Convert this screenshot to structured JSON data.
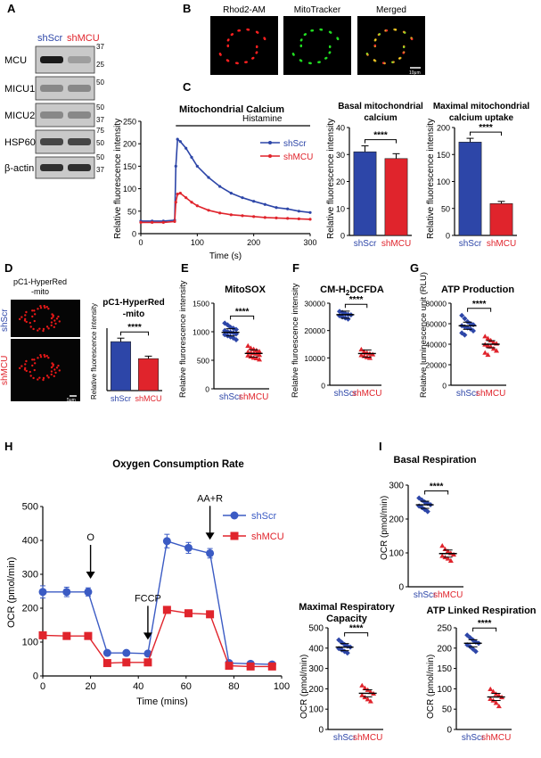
{
  "panels": {
    "A": {
      "letter": "A",
      "col_labels": [
        "shScr",
        "shMCU"
      ],
      "rows": [
        "MCU",
        "MICU1",
        "MICU2",
        "HSP60",
        "β-actin"
      ],
      "markers": [
        "37",
        "25",
        "50",
        "50",
        "37",
        "75",
        "50",
        "50",
        "37"
      ],
      "col_colors": [
        "#2d46a8",
        "#e0242c"
      ]
    },
    "B": {
      "letter": "B",
      "titles": [
        "Rhod2-AM",
        "MitoTracker",
        "Merged"
      ],
      "scale": "10μm"
    },
    "C": {
      "letter": "C",
      "trace": {
        "type": "line",
        "title": "Mitochondrial Calcium",
        "annotation": "Histamine",
        "xlabel": "Time (s)",
        "ylabel": "Relative fluorescence intensity",
        "xlim": [
          0,
          300
        ],
        "ylim": [
          0,
          250
        ],
        "xticks": [
          0,
          100,
          200,
          300
        ],
        "yticks": [
          0,
          50,
          100,
          150,
          200,
          250
        ],
        "series": [
          {
            "name": "shScr",
            "color": "#2d46a8",
            "x": [
              0,
              20,
              40,
              60,
              62,
              65,
              70,
              80,
              90,
              100,
              120,
              140,
              160,
              180,
              200,
              220,
              240,
              260,
              280,
              300
            ],
            "y": [
              28,
              28,
              28,
              30,
              150,
              210,
              205,
              190,
              170,
              150,
              125,
              105,
              90,
              80,
              72,
              65,
              58,
              55,
              50,
              47
            ]
          },
          {
            "name": "shMCU",
            "color": "#e0242c",
            "x": [
              0,
              20,
              40,
              60,
              62,
              65,
              70,
              80,
              90,
              100,
              120,
              140,
              160,
              180,
              200,
              220,
              240,
              260,
              280,
              300
            ],
            "y": [
              25,
              25,
              25,
              27,
              70,
              88,
              90,
              80,
              70,
              62,
              52,
              46,
              42,
              40,
              38,
              36,
              35,
              34,
              33,
              32
            ]
          }
        ]
      },
      "basal": {
        "type": "bar",
        "title": [
          "Basal mitochondrial",
          "calcium"
        ],
        "ylabel": "Relative fluorescence intensity",
        "ylim": [
          0,
          40
        ],
        "yticks": [
          0,
          10,
          20,
          30,
          40
        ],
        "categories": [
          "shScr",
          "shMCU"
        ],
        "values": [
          31,
          28.5
        ],
        "errors": [
          2.2,
          1.8
        ],
        "colors": [
          "#2d46a8",
          "#e0242c"
        ],
        "sig": "****"
      },
      "maximal": {
        "type": "bar",
        "title": [
          "Maximal mitochondrial",
          "calcium uptake"
        ],
        "ylabel": "Relative fluorescence intensity",
        "ylim": [
          0,
          200
        ],
        "yticks": [
          0,
          50,
          100,
          150,
          200
        ],
        "categories": [
          "shScr",
          "shMCU"
        ],
        "values": [
          173,
          59
        ],
        "errors": [
          7,
          4
        ],
        "colors": [
          "#2d46a8",
          "#e0242c"
        ],
        "sig": "****"
      }
    },
    "D": {
      "letter": "D",
      "image_title": [
        "pC1-HyperRed",
        "-mito"
      ],
      "row_labels": [
        "shScr",
        "shMCU"
      ],
      "scale": "5μm",
      "bar": {
        "type": "bar",
        "title": [
          "pC1-HyperRed",
          "-mito"
        ],
        "ylabel": "Relative fluorescence intensity",
        "ylim": [
          0,
          250
        ],
        "categories": [
          "shScr",
          "shMCU"
        ],
        "values": [
          196,
          128
        ],
        "errors": [
          14,
          10
        ],
        "colors": [
          "#2d46a8",
          "#e0242c"
        ],
        "sig": "****"
      }
    },
    "E": {
      "letter": "E",
      "chart": {
        "type": "scatter",
        "title": "MitoSOX",
        "ylabel": "Relative flurorescence intensity",
        "ylim": [
          0,
          1500
        ],
        "yticks": [
          0,
          500,
          1000,
          1500
        ],
        "categories": [
          "shScr",
          "shMCU"
        ],
        "colors": [
          "#2d46a8",
          "#e0242c"
        ],
        "means": [
          990,
          620
        ],
        "points": [
          [
            1150,
            1120,
            1080,
            1060,
            1040,
            1020,
            1000,
            990,
            980,
            960,
            950,
            930,
            910,
            890,
            860
          ],
          [
            760,
            720,
            700,
            680,
            660,
            650,
            640,
            630,
            620,
            600,
            590,
            570,
            550,
            540,
            520
          ]
        ],
        "sig": "****"
      }
    },
    "F": {
      "letter": "F",
      "chart": {
        "type": "scatter",
        "title": "CM-H2DCFDA",
        "ylabel": "Relative fluroescence intensity",
        "ylim": [
          0,
          30000
        ],
        "yticks": [
          0,
          10000,
          20000,
          30000
        ],
        "categories": [
          "shScr",
          "shMCU"
        ],
        "colors": [
          "#2d46a8",
          "#e0242c"
        ],
        "means": [
          25800,
          11600
        ],
        "points": [
          [
            27000,
            26600,
            26200,
            25900,
            25700,
            25400,
            25000,
            24600,
            24200
          ],
          [
            13200,
            12400,
            12000,
            11700,
            11400,
            11100,
            10800,
            10400,
            10100
          ]
        ],
        "sig": "****"
      }
    },
    "G": {
      "letter": "G",
      "chart": {
        "type": "scatter",
        "title": "ATP Production",
        "ylabel": "Relative luminescence unit (RLU)",
        "ylim": [
          0,
          80000
        ],
        "yticks": [
          0,
          20000,
          40000,
          60000,
          80000
        ],
        "categories": [
          "shScr",
          "shMCU"
        ],
        "colors": [
          "#2d46a8",
          "#e0242c"
        ],
        "means": [
          58000,
          40000
        ],
        "points": [
          [
            68000,
            65000,
            62000,
            60000,
            59000,
            58000,
            57000,
            56000,
            55000,
            53000,
            51000,
            49000
          ],
          [
            48000,
            46000,
            44000,
            42000,
            41000,
            40000,
            39000,
            38000,
            36000,
            34000,
            32000,
            30000
          ]
        ],
        "sig": "****"
      }
    },
    "H": {
      "letter": "H",
      "chart": {
        "type": "line",
        "title": "Oxygen Consumption Rate",
        "xlabel": "Time (mins)",
        "ylabel": "OCR (pmol/min)",
        "xlim": [
          0,
          100
        ],
        "ylim": [
          0,
          500
        ],
        "xticks": [
          0,
          20,
          40,
          60,
          80,
          100
        ],
        "yticks": [
          0,
          100,
          200,
          300,
          400,
          500
        ],
        "annotations": [
          {
            "label": "O",
            "x": 20,
            "y": 250
          },
          {
            "label": "FCCP",
            "x": 44,
            "y": 70
          },
          {
            "label": "AA+R",
            "x": 70,
            "y": 365
          }
        ],
        "series": [
          {
            "name": "shScr",
            "color": "#3b5bc4",
            "marker": "circle",
            "x": [
              0,
              10,
              19,
              27,
              35,
              44,
              52,
              61,
              70,
              78,
              87,
              96
            ],
            "y": [
              248,
              248,
              248,
              68,
              68,
              66,
              398,
              378,
              362,
              38,
              36,
              34
            ],
            "err": [
              18,
              14,
              12,
              5,
              5,
              5,
              20,
              16,
              14,
              4,
              4,
              4
            ]
          },
          {
            "name": "shMCU",
            "color": "#e0242c",
            "marker": "square",
            "x": [
              0,
              10,
              19,
              27,
              35,
              44,
              52,
              61,
              70,
              78,
              87,
              96
            ],
            "y": [
              120,
              118,
              118,
              38,
              40,
              40,
              195,
              185,
              182,
              30,
              28,
              28
            ],
            "err": [
              6,
              6,
              6,
              3,
              3,
              3,
              10,
              9,
              9,
              3,
              3,
              3
            ]
          }
        ]
      }
    },
    "I": {
      "letter": "I",
      "basal": {
        "type": "scatter",
        "title": "Basal Respiration",
        "ylabel": "OCR (pmol/min)",
        "ylim": [
          0,
          300
        ],
        "yticks": [
          0,
          100,
          200,
          300
        ],
        "categories": [
          "shScr",
          "shMCU"
        ],
        "colors": [
          "#2d46a8",
          "#e0242c"
        ],
        "means": [
          242,
          98
        ],
        "points": [
          [
            262,
            256,
            250,
            246,
            242,
            238,
            234,
            228,
            222
          ],
          [
            122,
            112,
            106,
            100,
            96,
            92,
            88,
            84,
            78
          ]
        ],
        "sig": "****"
      },
      "maximal": {
        "type": "scatter",
        "title": [
          "Maximal Respiratory",
          "Capacity"
        ],
        "ylabel": "OCR (pmol/min)",
        "ylim": [
          0,
          500
        ],
        "yticks": [
          0,
          100,
          200,
          300,
          400,
          500
        ],
        "categories": [
          "shScr",
          "shMCU"
        ],
        "colors": [
          "#2d46a8",
          "#e0242c"
        ],
        "means": [
          405,
          178
        ],
        "points": [
          [
            440,
            428,
            418,
            410,
            405,
            398,
            392,
            384,
            376
          ],
          [
            218,
            205,
            196,
            186,
            178,
            170,
            160,
            150,
            140
          ]
        ],
        "sig": "****"
      },
      "atp": {
        "type": "scatter",
        "title": "ATP Linked Respiration",
        "ylabel": "OCR (pmol/min)",
        "ylim": [
          0,
          250
        ],
        "yticks": [
          0,
          50,
          100,
          150,
          200,
          250
        ],
        "categories": [
          "shScr",
          "shMCU"
        ],
        "colors": [
          "#2d46a8",
          "#e0242c"
        ],
        "means": [
          212,
          80
        ],
        "points": [
          [
            232,
            226,
            220,
            215,
            212,
            208,
            204,
            198,
            192
          ],
          [
            100,
            94,
            88,
            84,
            80,
            76,
            72,
            66,
            58
          ]
        ],
        "sig": "****"
      }
    }
  }
}
